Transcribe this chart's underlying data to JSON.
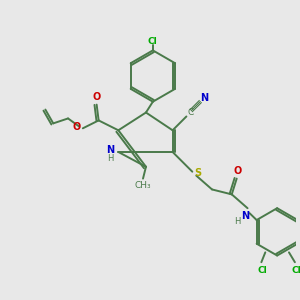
{
  "bg_color": "#e8e8e8",
  "bond_color": "#4a7a4a",
  "atom_colors": {
    "Cl": "#00aa00",
    "N": "#0000cc",
    "O": "#cc0000",
    "S": "#aaaa00",
    "C": "#4a7a4a",
    "H": "#4a7a4a"
  },
  "figsize": [
    3.0,
    3.0
  ],
  "dpi": 100
}
